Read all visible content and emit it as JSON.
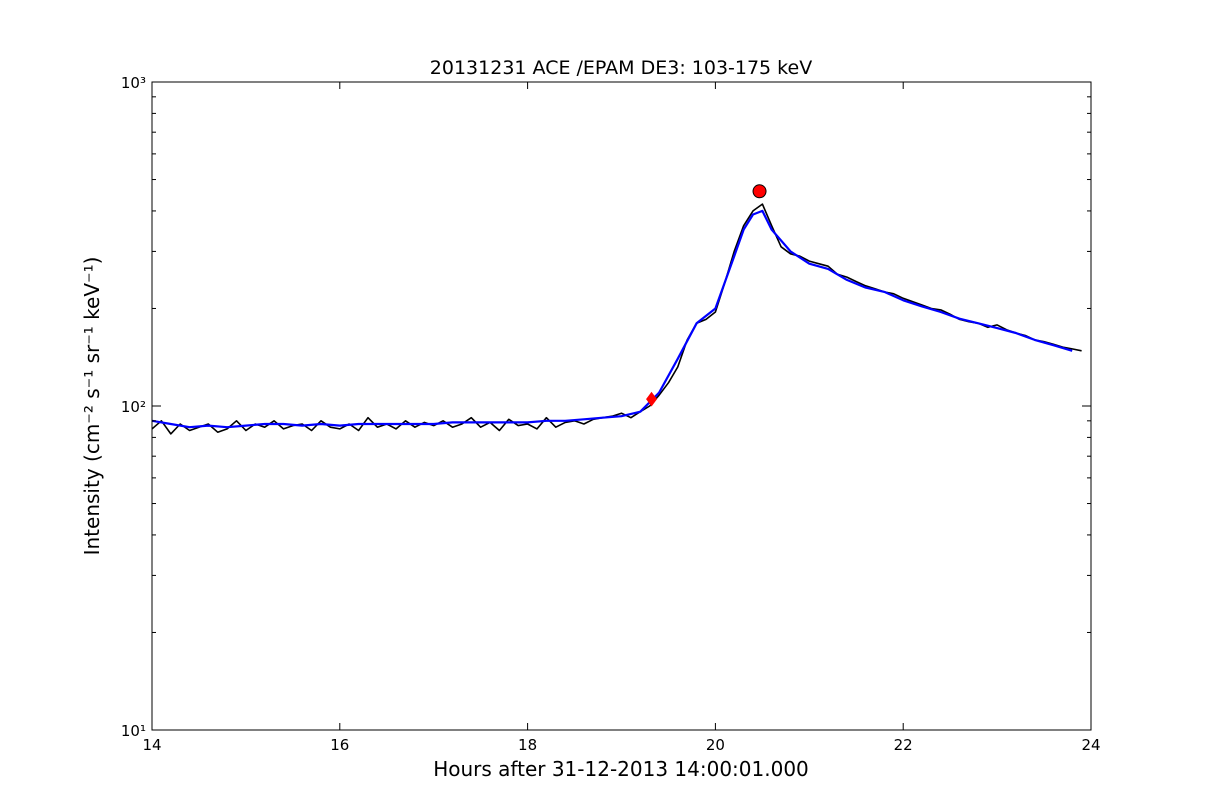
{
  "chart_data": {
    "type": "line",
    "title": "20131231 ACE /EPAM DE3: 103-175 keV",
    "xlabel": "Hours after 31-12-2013 14:00:01.000",
    "ylabel": "Intensity (cm⁻² s⁻¹ sr⁻¹ keV⁻¹)",
    "xlim": [
      14,
      24
    ],
    "ylim": [
      10,
      1000
    ],
    "yscale": "log",
    "grid": false,
    "x_ticks": [
      14,
      16,
      18,
      20,
      22,
      24
    ],
    "x_tick_labels": [
      "14",
      "16",
      "18",
      "20",
      "22",
      "24"
    ],
    "y_ticks": [
      10,
      100,
      1000
    ],
    "y_tick_labels": [
      "10¹",
      "10²",
      "10³"
    ],
    "series": [
      {
        "role": "raw",
        "color": "#000000",
        "x": [
          14.0,
          14.1,
          14.2,
          14.3,
          14.4,
          14.5,
          14.6,
          14.7,
          14.8,
          14.9,
          15.0,
          15.1,
          15.2,
          15.3,
          15.4,
          15.5,
          15.6,
          15.7,
          15.8,
          15.9,
          16.0,
          16.1,
          16.2,
          16.3,
          16.4,
          16.5,
          16.6,
          16.7,
          16.8,
          16.9,
          17.0,
          17.1,
          17.2,
          17.3,
          17.4,
          17.5,
          17.6,
          17.7,
          17.8,
          17.9,
          18.0,
          18.1,
          18.2,
          18.3,
          18.4,
          18.5,
          18.6,
          18.7,
          18.8,
          18.9,
          19.0,
          19.1,
          19.2,
          19.3,
          19.4,
          19.5,
          19.6,
          19.7,
          19.8,
          19.9,
          20.0,
          20.1,
          20.2,
          20.3,
          20.4,
          20.5,
          20.6,
          20.7,
          20.8,
          20.9,
          21.0,
          21.1,
          21.2,
          21.3,
          21.4,
          21.5,
          21.6,
          21.7,
          21.8,
          21.9,
          22.0,
          22.1,
          22.2,
          22.3,
          22.4,
          22.5,
          22.6,
          22.7,
          22.8,
          22.9,
          23.0,
          23.1,
          23.2,
          23.3,
          23.4,
          23.5,
          23.6,
          23.7,
          23.8,
          23.9
        ],
        "y": [
          85,
          90,
          82,
          88,
          84,
          86,
          88,
          83,
          85,
          90,
          84,
          88,
          86,
          90,
          85,
          87,
          88,
          84,
          90,
          86,
          85,
          88,
          84,
          92,
          86,
          88,
          85,
          90,
          86,
          89,
          87,
          90,
          86,
          88,
          92,
          86,
          89,
          84,
          91,
          87,
          88,
          85,
          92,
          86,
          89,
          90,
          88,
          91,
          92,
          93,
          95,
          92,
          96,
          100,
          108,
          118,
          132,
          160,
          180,
          185,
          195,
          240,
          300,
          360,
          400,
          420,
          360,
          310,
          295,
          290,
          280,
          275,
          270,
          255,
          250,
          242,
          235,
          230,
          225,
          222,
          215,
          210,
          205,
          200,
          198,
          192,
          185,
          182,
          180,
          175,
          178,
          172,
          168,
          165,
          160,
          158,
          155,
          152,
          150,
          148
        ]
      },
      {
        "role": "smoothed",
        "color": "#0000ff",
        "x": [
          14.0,
          14.2,
          14.4,
          14.6,
          14.8,
          15.0,
          15.2,
          15.4,
          15.6,
          15.8,
          16.0,
          16.2,
          16.4,
          16.6,
          16.8,
          17.0,
          17.2,
          17.4,
          17.6,
          17.8,
          18.0,
          18.2,
          18.4,
          18.6,
          18.8,
          19.0,
          19.2,
          19.4,
          19.6,
          19.8,
          20.0,
          20.2,
          20.3,
          20.4,
          20.5,
          20.6,
          20.8,
          21.0,
          21.2,
          21.4,
          21.6,
          21.8,
          22.0,
          22.2,
          22.4,
          22.6,
          22.8,
          23.0,
          23.2,
          23.4,
          23.6,
          23.8
        ],
        "y": [
          90,
          88,
          86,
          87,
          86,
          87,
          88,
          88,
          87,
          88,
          87,
          88,
          88,
          88,
          88,
          88,
          89,
          89,
          89,
          89,
          89,
          90,
          90,
          91,
          92,
          93,
          96,
          110,
          140,
          180,
          200,
          290,
          350,
          390,
          400,
          350,
          300,
          275,
          265,
          245,
          232,
          225,
          212,
          203,
          195,
          186,
          180,
          174,
          168,
          160,
          154,
          148
        ]
      },
      {
        "role": "markers",
        "color": "#ff0000",
        "points": [
          {
            "x": 19.32,
            "y": 105,
            "shape": "diamond"
          },
          {
            "x": 20.47,
            "y": 460,
            "shape": "circle"
          }
        ]
      }
    ]
  }
}
